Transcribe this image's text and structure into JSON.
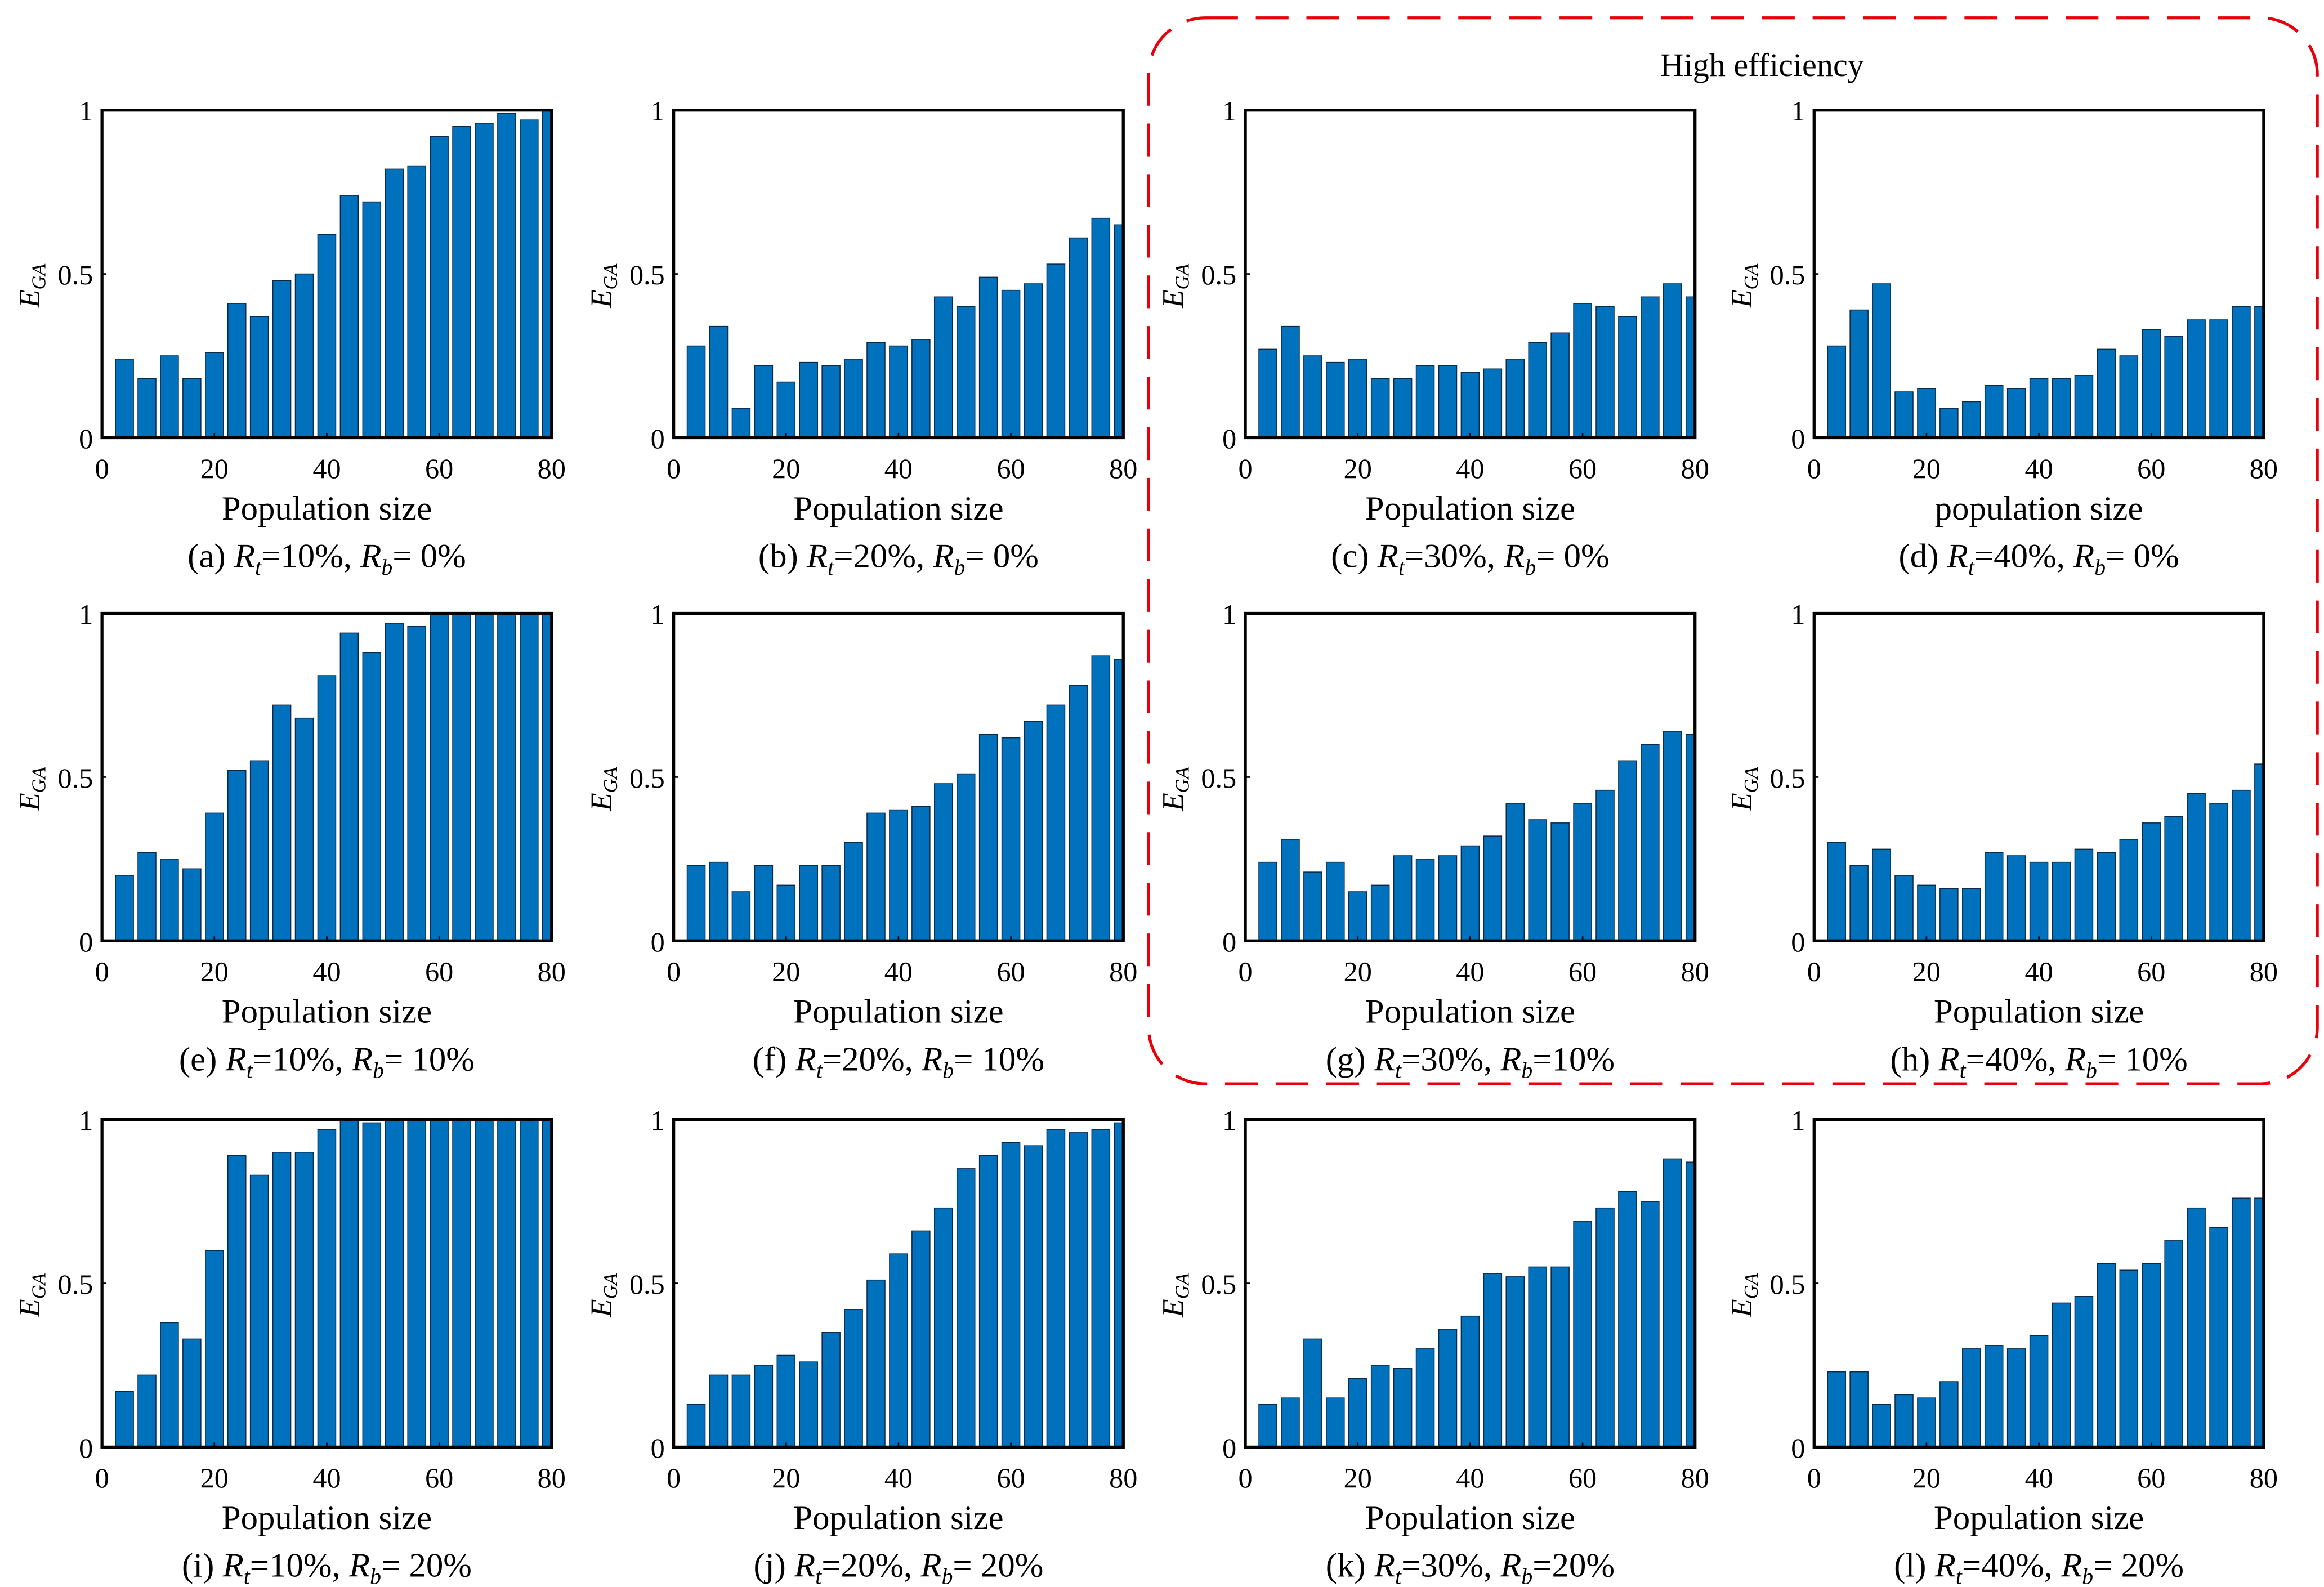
{
  "highlight": {
    "label": "High efficiency",
    "color": "#E8000B"
  },
  "bar_color": "#0072BD",
  "chart_data": [
    {
      "id": "a",
      "type": "bar",
      "xlabel": "Population size",
      "ylabel": "E",
      "ylabel_sub": "GA",
      "caption": {
        "tag": "(a)",
        "rt": "=10%, ",
        "rb": "= 0%"
      },
      "x": [
        4,
        8,
        12,
        16,
        20,
        24,
        28,
        32,
        36,
        40,
        44,
        48,
        52,
        56,
        60,
        64,
        68,
        72,
        76,
        80
      ],
      "values": [
        0.24,
        0.18,
        0.25,
        0.18,
        0.26,
        0.41,
        0.37,
        0.48,
        0.5,
        0.62,
        0.74,
        0.72,
        0.82,
        0.83,
        0.92,
        0.95,
        0.96,
        0.99,
        0.97,
        1.0
      ],
      "xlim": [
        0,
        80
      ],
      "ylim": [
        0,
        1
      ],
      "xticks": [
        "0",
        "20",
        "40",
        "60",
        "80"
      ],
      "yticks": [
        "0",
        "0.5",
        "1"
      ]
    },
    {
      "id": "b",
      "type": "bar",
      "xlabel": "Population size",
      "ylabel": "E",
      "ylabel_sub": "GA",
      "caption": {
        "tag": "(b)",
        "rt": "=20%, ",
        "rb": "= 0%"
      },
      "x": [
        4,
        8,
        12,
        16,
        20,
        24,
        28,
        32,
        36,
        40,
        44,
        48,
        52,
        56,
        60,
        64,
        68,
        72,
        76,
        80
      ],
      "values": [
        0.28,
        0.34,
        0.09,
        0.22,
        0.17,
        0.23,
        0.22,
        0.24,
        0.29,
        0.28,
        0.3,
        0.43,
        0.4,
        0.49,
        0.45,
        0.47,
        0.53,
        0.61,
        0.67,
        0.65
      ],
      "xlim": [
        0,
        80
      ],
      "ylim": [
        0,
        1
      ],
      "xticks": [
        "0",
        "20",
        "40",
        "60",
        "80"
      ],
      "yticks": [
        "0",
        "0.5",
        "1"
      ]
    },
    {
      "id": "c",
      "type": "bar",
      "xlabel": "Population size",
      "ylabel": "E",
      "ylabel_sub": "GA",
      "caption": {
        "tag": "(c)",
        "rt": "=30%, ",
        "rb": "= 0%"
      },
      "x": [
        4,
        8,
        12,
        16,
        20,
        24,
        28,
        32,
        36,
        40,
        44,
        48,
        52,
        56,
        60,
        64,
        68,
        72,
        76,
        80
      ],
      "values": [
        0.27,
        0.34,
        0.25,
        0.23,
        0.24,
        0.18,
        0.18,
        0.22,
        0.22,
        0.2,
        0.21,
        0.24,
        0.29,
        0.32,
        0.41,
        0.4,
        0.37,
        0.43,
        0.47,
        0.43
      ],
      "xlim": [
        0,
        80
      ],
      "ylim": [
        0,
        1
      ],
      "xticks": [
        "0",
        "20",
        "40",
        "60",
        "80"
      ],
      "yticks": [
        "0",
        "0.5",
        "1"
      ]
    },
    {
      "id": "d",
      "type": "bar",
      "xlabel": "population size",
      "ylabel": "E",
      "ylabel_sub": "GA",
      "caption": {
        "tag": "(d)",
        "rt": "=40%, ",
        "rb": "= 0%"
      },
      "x": [
        4,
        8,
        12,
        16,
        20,
        24,
        28,
        32,
        36,
        40,
        44,
        48,
        52,
        56,
        60,
        64,
        68,
        72,
        76,
        80
      ],
      "values": [
        0.28,
        0.39,
        0.47,
        0.14,
        0.15,
        0.09,
        0.11,
        0.16,
        0.15,
        0.18,
        0.18,
        0.19,
        0.27,
        0.25,
        0.33,
        0.31,
        0.36,
        0.36,
        0.4,
        0.4
      ],
      "xlim": [
        0,
        80
      ],
      "ylim": [
        0,
        1
      ],
      "xticks": [
        "0",
        "20",
        "40",
        "60",
        "80"
      ],
      "yticks": [
        "0",
        "0.5",
        "1"
      ]
    },
    {
      "id": "e",
      "type": "bar",
      "xlabel": "Population size",
      "ylabel": "E",
      "ylabel_sub": "GA",
      "caption": {
        "tag": "(e)",
        "rt": "=10%, ",
        "rb": "= 10%"
      },
      "x": [
        4,
        8,
        12,
        16,
        20,
        24,
        28,
        32,
        36,
        40,
        44,
        48,
        52,
        56,
        60,
        64,
        68,
        72,
        76,
        80
      ],
      "values": [
        0.2,
        0.27,
        0.25,
        0.22,
        0.39,
        0.52,
        0.55,
        0.72,
        0.68,
        0.81,
        0.94,
        0.88,
        0.97,
        0.96,
        1,
        1,
        1,
        1,
        1,
        1
      ],
      "xlim": [
        0,
        80
      ],
      "ylim": [
        0,
        1
      ],
      "xticks": [
        "0",
        "20",
        "40",
        "60",
        "80"
      ],
      "yticks": [
        "0",
        "0.5",
        "1"
      ]
    },
    {
      "id": "f",
      "type": "bar",
      "xlabel": "Population size",
      "ylabel": "E",
      "ylabel_sub": "GA",
      "caption": {
        "tag": "(f)",
        "rt": "=20%, ",
        "rb": "= 10%"
      },
      "x": [
        4,
        8,
        12,
        16,
        20,
        24,
        28,
        32,
        36,
        40,
        44,
        48,
        52,
        56,
        60,
        64,
        68,
        72,
        76,
        80
      ],
      "values": [
        0.23,
        0.24,
        0.15,
        0.23,
        0.17,
        0.23,
        0.23,
        0.3,
        0.39,
        0.4,
        0.41,
        0.48,
        0.51,
        0.63,
        0.62,
        0.67,
        0.72,
        0.78,
        0.87,
        0.86
      ],
      "xlim": [
        0,
        80
      ],
      "ylim": [
        0,
        1
      ],
      "xticks": [
        "0",
        "20",
        "40",
        "60",
        "80"
      ],
      "yticks": [
        "0",
        "0.5",
        "1"
      ]
    },
    {
      "id": "g",
      "type": "bar",
      "xlabel": "Population size",
      "ylabel": "E",
      "ylabel_sub": "GA",
      "caption": {
        "tag": "(g)",
        "rt": "=30%, ",
        "rb": "=10%"
      },
      "x": [
        4,
        8,
        12,
        16,
        20,
        24,
        28,
        32,
        36,
        40,
        44,
        48,
        52,
        56,
        60,
        64,
        68,
        72,
        76,
        80
      ],
      "values": [
        0.24,
        0.31,
        0.21,
        0.24,
        0.15,
        0.17,
        0.26,
        0.25,
        0.26,
        0.29,
        0.32,
        0.42,
        0.37,
        0.36,
        0.42,
        0.46,
        0.55,
        0.6,
        0.64,
        0.63
      ],
      "xlim": [
        0,
        80
      ],
      "ylim": [
        0,
        1
      ],
      "xticks": [
        "0",
        "20",
        "40",
        "60",
        "80"
      ],
      "yticks": [
        "0",
        "0.5",
        "1"
      ]
    },
    {
      "id": "h",
      "type": "bar",
      "xlabel": "Population size",
      "ylabel": "E",
      "ylabel_sub": "GA",
      "caption": {
        "tag": "(h)",
        "rt": "=40%, ",
        "rb": "= 10%"
      },
      "x": [
        4,
        8,
        12,
        16,
        20,
        24,
        28,
        32,
        36,
        40,
        44,
        48,
        52,
        56,
        60,
        64,
        68,
        72,
        76,
        80
      ],
      "values": [
        0.3,
        0.23,
        0.28,
        0.2,
        0.17,
        0.16,
        0.16,
        0.27,
        0.26,
        0.24,
        0.24,
        0.28,
        0.27,
        0.31,
        0.36,
        0.38,
        0.45,
        0.42,
        0.46,
        0.54
      ],
      "xlim": [
        0,
        80
      ],
      "ylim": [
        0,
        1
      ],
      "xticks": [
        "0",
        "20",
        "40",
        "60",
        "80"
      ],
      "yticks": [
        "0",
        "0.5",
        "1"
      ]
    },
    {
      "id": "i",
      "type": "bar",
      "xlabel": "Population size",
      "ylabel": "E",
      "ylabel_sub": "GA",
      "caption": {
        "tag": "(i)",
        "rt": "=10%, ",
        "rb": "= 20%"
      },
      "x": [
        4,
        8,
        12,
        16,
        20,
        24,
        28,
        32,
        36,
        40,
        44,
        48,
        52,
        56,
        60,
        64,
        68,
        72,
        76,
        80
      ],
      "values": [
        0.17,
        0.22,
        0.38,
        0.33,
        0.6,
        0.89,
        0.83,
        0.9,
        0.9,
        0.97,
        1,
        0.99,
        1,
        1,
        1,
        1,
        1,
        1,
        1,
        1
      ],
      "xlim": [
        0,
        80
      ],
      "ylim": [
        0,
        1
      ],
      "xticks": [
        "0",
        "20",
        "40",
        "60",
        "80"
      ],
      "yticks": [
        "0",
        "0.5",
        "1"
      ]
    },
    {
      "id": "j",
      "type": "bar",
      "xlabel": "Population size",
      "ylabel": "E",
      "ylabel_sub": "GA",
      "caption": {
        "tag": "(j)",
        "rt": "=20%, ",
        "rb": "= 20%"
      },
      "x": [
        4,
        8,
        12,
        16,
        20,
        24,
        28,
        32,
        36,
        40,
        44,
        48,
        52,
        56,
        60,
        64,
        68,
        72,
        76,
        80
      ],
      "values": [
        0.13,
        0.22,
        0.22,
        0.25,
        0.28,
        0.26,
        0.35,
        0.42,
        0.51,
        0.59,
        0.66,
        0.73,
        0.85,
        0.89,
        0.93,
        0.92,
        0.97,
        0.96,
        0.97,
        0.99
      ],
      "xlim": [
        0,
        80
      ],
      "ylim": [
        0,
        1
      ],
      "xticks": [
        "0",
        "20",
        "40",
        "60",
        "80"
      ],
      "yticks": [
        "0",
        "0.5",
        "1"
      ]
    },
    {
      "id": "k",
      "type": "bar",
      "xlabel": "Population size",
      "ylabel": "E",
      "ylabel_sub": "GA",
      "caption": {
        "tag": "(k)",
        "rt": "=30%, ",
        "rb": "=20%"
      },
      "x": [
        4,
        8,
        12,
        16,
        20,
        24,
        28,
        32,
        36,
        40,
        44,
        48,
        52,
        56,
        60,
        64,
        68,
        72,
        76,
        80
      ],
      "values": [
        0.13,
        0.15,
        0.33,
        0.15,
        0.21,
        0.25,
        0.24,
        0.3,
        0.36,
        0.4,
        0.53,
        0.52,
        0.55,
        0.55,
        0.69,
        0.73,
        0.78,
        0.75,
        0.88,
        0.87
      ],
      "xlim": [
        0,
        80
      ],
      "ylim": [
        0,
        1
      ],
      "xticks": [
        "0",
        "20",
        "40",
        "60",
        "80"
      ],
      "yticks": [
        "0",
        "0.5",
        "1"
      ]
    },
    {
      "id": "l",
      "type": "bar",
      "xlabel": "Population size",
      "ylabel": "E",
      "ylabel_sub": "GA",
      "caption": {
        "tag": "(l)",
        "rt": "=40%, ",
        "rb": "= 20%"
      },
      "x": [
        4,
        8,
        12,
        16,
        20,
        24,
        28,
        32,
        36,
        40,
        44,
        48,
        52,
        56,
        60,
        64,
        68,
        72,
        76,
        80
      ],
      "values": [
        0.23,
        0.23,
        0.13,
        0.16,
        0.15,
        0.2,
        0.3,
        0.31,
        0.3,
        0.34,
        0.44,
        0.46,
        0.56,
        0.54,
        0.56,
        0.63,
        0.73,
        0.67,
        0.76,
        0.76
      ],
      "xlim": [
        0,
        80
      ],
      "ylim": [
        0,
        1
      ],
      "xticks": [
        "0",
        "20",
        "40",
        "60",
        "80"
      ],
      "yticks": [
        "0",
        "0.5",
        "1"
      ]
    }
  ]
}
